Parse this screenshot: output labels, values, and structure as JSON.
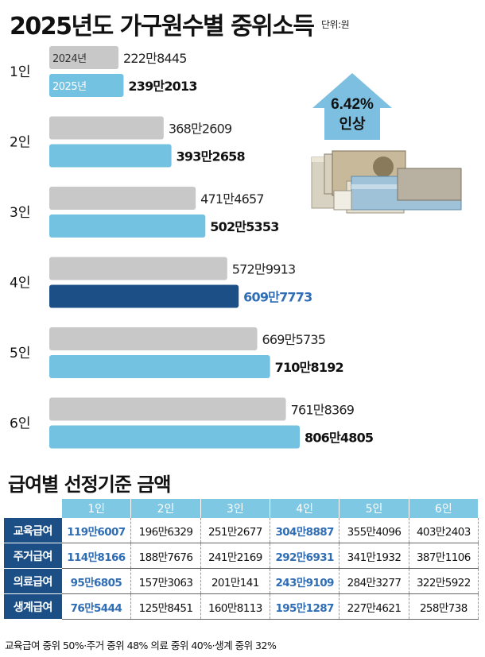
{
  "title": "2025년도 가구원수별 중위소득",
  "unit": "단위:원",
  "badge": {
    "value": "6.42%",
    "text": "인상"
  },
  "colors": {
    "bar_2024": "#c8c8c8",
    "bar_2025": "#74c2e2",
    "bar_2025_highlight": "#1c4f86",
    "highlight_text": "#2f6db5",
    "arrow": "#7cbfe0"
  },
  "chart_data": {
    "type": "bar",
    "orientation": "horizontal",
    "categories": [
      "1인",
      "2인",
      "3인",
      "4인",
      "5인",
      "6인"
    ],
    "series": [
      {
        "name": "2024년",
        "values": [
          2228445,
          3682609,
          4714657,
          5729913,
          6695735,
          7618369
        ]
      },
      {
        "name": "2025년",
        "values": [
          2392013,
          3932658,
          5025353,
          6097773,
          7108192,
          8064805
        ]
      }
    ],
    "value_labels": {
      "2024년": [
        "222만8445",
        "368만2609",
        "471만4657",
        "572만9913",
        "669만5735",
        "761만8369"
      ],
      "2025년": [
        "239만2013",
        "393만2658",
        "502만5353",
        "609만7773",
        "710만8192",
        "806만4805"
      ]
    },
    "highlight_category": "4인",
    "xlim": [
      0,
      8064805
    ],
    "grid": false
  },
  "table": {
    "title": "급여별 선정기준 금액",
    "headers": [
      "1인",
      "2인",
      "3인",
      "4인",
      "5인",
      "6인"
    ],
    "rows": [
      {
        "label": "교육급여",
        "values": [
          "119만6007",
          "196만6329",
          "251만2677",
          "304만8887",
          "355만4096",
          "403만2403"
        ]
      },
      {
        "label": "주거급여",
        "values": [
          "114만8166",
          "188만7676",
          "241만2169",
          "292만6931",
          "341만1932",
          "387만1106"
        ]
      },
      {
        "label": "의료급여",
        "values": [
          "95만6805",
          "157만3063",
          "201만141",
          "243만9109",
          "284만3277",
          "322만5922"
        ]
      },
      {
        "label": "생계급여",
        "values": [
          "76만5444",
          "125만8451",
          "160만8113",
          "195만1287",
          "227만4621",
          "258만738"
        ]
      }
    ]
  },
  "footnote": "교육급여 중위 50%·주거 중위 48% 의료 중위 40%·생계 중위 32%"
}
